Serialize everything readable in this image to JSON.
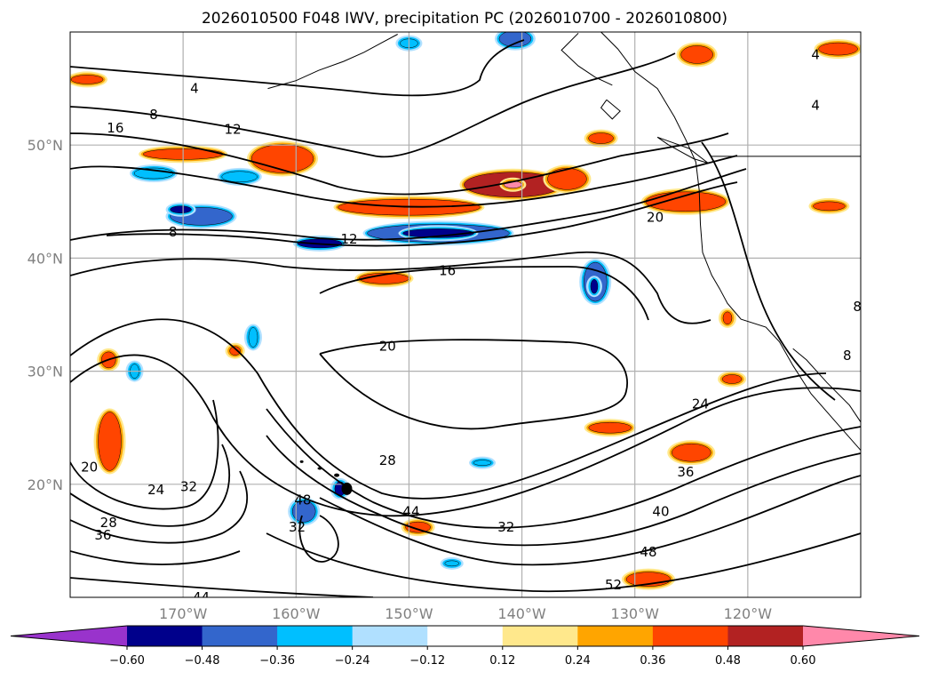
{
  "chart_data": {
    "type": "heatmap",
    "title": "2026010500 F048 IWV, precipitation PC (2026010700 - 2026010800)",
    "map_extent": {
      "lon_range": [
        -180,
        -110
      ],
      "lat_range": [
        10,
        60
      ]
    },
    "lon_ticks": [
      {
        "value": -170,
        "label": "170°W"
      },
      {
        "value": -160,
        "label": "160°W"
      },
      {
        "value": -150,
        "label": "150°W"
      },
      {
        "value": -140,
        "label": "140°W"
      },
      {
        "value": -130,
        "label": "130°W"
      },
      {
        "value": -120,
        "label": "120°W"
      }
    ],
    "lat_ticks": [
      {
        "value": 20,
        "label": "20°N"
      },
      {
        "value": 30,
        "label": "30°N"
      },
      {
        "value": 40,
        "label": "40°N"
      },
      {
        "value": 50,
        "label": "50°N"
      }
    ],
    "grid": true,
    "colorbar": {
      "orientation": "horizontal",
      "extend": "both",
      "levels": [
        -0.72,
        -0.6,
        -0.48,
        -0.36,
        -0.24,
        -0.12,
        0.12,
        0.24,
        0.36,
        0.48,
        0.6,
        0.72
      ],
      "tick_values": [
        -0.6,
        -0.48,
        -0.36,
        -0.24,
        -0.12,
        0.12,
        0.24,
        0.36,
        0.48,
        0.6
      ],
      "tick_labels": [
        "−0.60",
        "−0.48",
        "−0.36",
        "−0.24",
        "−0.12",
        "0.12",
        "0.24",
        "0.36",
        "0.48",
        "0.60"
      ],
      "colors": [
        "#9933cc",
        "#00008b",
        "#3366cc",
        "#00bfff",
        "#b0e0ff",
        "#ffffff",
        "#ffe88c",
        "#ffa500",
        "#ff4500",
        "#b22222",
        "#ff88aa"
      ]
    },
    "iwv_contour_labels": [
      {
        "text": "4",
        "lon": -169,
        "lat": 55
      },
      {
        "text": "4",
        "lon": -114,
        "lat": 58
      },
      {
        "text": "4",
        "lon": -114,
        "lat": 53.5
      },
      {
        "text": "8",
        "lon": -172.6,
        "lat": 52.7
      },
      {
        "text": "16",
        "lon": -176,
        "lat": 51.5
      },
      {
        "text": "12",
        "lon": -165.6,
        "lat": 51.4
      },
      {
        "text": "8",
        "lon": -170.9,
        "lat": 42.3
      },
      {
        "text": "12",
        "lon": -155.3,
        "lat": 41.7
      },
      {
        "text": "16",
        "lon": -146.6,
        "lat": 38.9
      },
      {
        "text": "20",
        "lon": -128.2,
        "lat": 43.6
      },
      {
        "text": "20",
        "lon": -151.9,
        "lat": 32.2
      },
      {
        "text": "24",
        "lon": -124.2,
        "lat": 27.1
      },
      {
        "text": "28",
        "lon": -151.9,
        "lat": 22.1
      },
      {
        "text": "20",
        "lon": -178.3,
        "lat": 21.5
      },
      {
        "text": "24",
        "lon": -172.4,
        "lat": 19.5
      },
      {
        "text": "32",
        "lon": -169.5,
        "lat": 19.8
      },
      {
        "text": "48",
        "lon": -159.4,
        "lat": 18.6
      },
      {
        "text": "44",
        "lon": -149.8,
        "lat": 17.6
      },
      {
        "text": "32",
        "lon": -159.9,
        "lat": 16.2
      },
      {
        "text": "36",
        "lon": -125.5,
        "lat": 21.1
      },
      {
        "text": "40",
        "lon": -127.7,
        "lat": 17.6
      },
      {
        "text": "48",
        "lon": -128.8,
        "lat": 14.0
      },
      {
        "text": "32",
        "lon": -141.4,
        "lat": 16.2
      },
      {
        "text": "28",
        "lon": -176.6,
        "lat": 16.6
      },
      {
        "text": "36",
        "lon": -177.1,
        "lat": 15.5
      },
      {
        "text": "52",
        "lon": -131.9,
        "lat": 11.1
      },
      {
        "text": "44",
        "lon": -168.4,
        "lat": 10.0
      },
      {
        "text": "8",
        "lon": -110.3,
        "lat": 35.7
      },
      {
        "text": "8",
        "lon": -111.2,
        "lat": 31.4
      }
    ],
    "precip_pc_features": [
      {
        "lon": -178.5,
        "lat": 55.8,
        "rx": 18,
        "ry": 5,
        "level": 0.36
      },
      {
        "lon": -170,
        "lat": 49.2,
        "rx": 45,
        "ry": 6,
        "level": 0.36
      },
      {
        "lon": -161.2,
        "lat": 48.8,
        "rx": 35,
        "ry": 16,
        "level": 0.36
      },
      {
        "lon": -150,
        "lat": 44.5,
        "rx": 80,
        "ry": 9,
        "level": 0.36
      },
      {
        "lon": -140.8,
        "lat": 46.5,
        "rx": 55,
        "ry": 14,
        "level": 0.48
      },
      {
        "lon": -140.8,
        "lat": 46.5,
        "rx": 10,
        "ry": 4,
        "level": 0.6
      },
      {
        "lon": -136,
        "lat": 47,
        "rx": 22,
        "ry": 12,
        "level": 0.36
      },
      {
        "lon": -125.5,
        "lat": 45,
        "rx": 45,
        "ry": 11,
        "level": 0.36
      },
      {
        "lon": -124.5,
        "lat": 58,
        "rx": 18,
        "ry": 10,
        "level": 0.36
      },
      {
        "lon": -112,
        "lat": 58.5,
        "rx": 22,
        "ry": 7,
        "level": 0.36
      },
      {
        "lon": -133,
        "lat": 50.6,
        "rx": 14,
        "ry": 6,
        "level": 0.36
      },
      {
        "lon": -176.5,
        "lat": 23.8,
        "rx": 13,
        "ry": 33,
        "level": 0.36
      },
      {
        "lon": -176.6,
        "lat": 31,
        "rx": 8,
        "ry": 9,
        "level": 0.36
      },
      {
        "lon": -152.2,
        "lat": 38.2,
        "rx": 28,
        "ry": 6,
        "level": 0.36
      },
      {
        "lon": -132.2,
        "lat": 25,
        "rx": 24,
        "ry": 6,
        "level": 0.36
      },
      {
        "lon": -125,
        "lat": 22.8,
        "rx": 22,
        "ry": 10,
        "level": 0.36
      },
      {
        "lon": -128.8,
        "lat": 11.6,
        "rx": 25,
        "ry": 8,
        "level": 0.36
      },
      {
        "lon": -149.2,
        "lat": 16.2,
        "rx": 14,
        "ry": 6,
        "level": 0.36
      },
      {
        "lon": -165.4,
        "lat": 31.8,
        "rx": 6,
        "ry": 5,
        "level": 0.36
      },
      {
        "lon": -121.4,
        "lat": 29.3,
        "rx": 11,
        "ry": 5,
        "level": 0.36
      },
      {
        "lon": -112.8,
        "lat": 44.6,
        "rx": 18,
        "ry": 5,
        "level": 0.36
      },
      {
        "lon": -121.8,
        "lat": 34.7,
        "rx": 5,
        "ry": 7,
        "level": 0.36
      },
      {
        "lon": -168.4,
        "lat": 43.7,
        "rx": 35,
        "ry": 10,
        "level": -0.48
      },
      {
        "lon": -170.2,
        "lat": 44.3,
        "rx": 12,
        "ry": 4,
        "level": -0.6
      },
      {
        "lon": -172.6,
        "lat": 47.5,
        "rx": 22,
        "ry": 6,
        "level": -0.36
      },
      {
        "lon": -165,
        "lat": 47.2,
        "rx": 20,
        "ry": 6,
        "level": -0.36
      },
      {
        "lon": -147.4,
        "lat": 42.2,
        "rx": 80,
        "ry": 10,
        "level": -0.48
      },
      {
        "lon": -147.4,
        "lat": 42.2,
        "rx": 40,
        "ry": 5,
        "level": -0.6
      },
      {
        "lon": -157.9,
        "lat": 41.3,
        "rx": 25,
        "ry": 5,
        "level": -0.6
      },
      {
        "lon": -150,
        "lat": 59,
        "rx": 10,
        "ry": 5,
        "level": -0.36
      },
      {
        "lon": -140.6,
        "lat": 59.4,
        "rx": 18,
        "ry": 9,
        "level": -0.48
      },
      {
        "lon": -133.5,
        "lat": 37.9,
        "rx": 13,
        "ry": 22,
        "level": -0.48
      },
      {
        "lon": -133.6,
        "lat": 37.5,
        "rx": 4,
        "ry": 8,
        "level": -0.6
      },
      {
        "lon": -163.8,
        "lat": 33,
        "rx": 5,
        "ry": 11,
        "level": -0.36
      },
      {
        "lon": -159.3,
        "lat": 17.6,
        "rx": 13,
        "ry": 12,
        "level": -0.48
      },
      {
        "lon": -156.1,
        "lat": 19.6,
        "rx": 6,
        "ry": 8,
        "level": -0.6
      },
      {
        "lon": -146.2,
        "lat": 13,
        "rx": 8,
        "ry": 3,
        "level": -0.36
      },
      {
        "lon": -143.5,
        "lat": 21.9,
        "rx": 10,
        "ry": 3,
        "level": -0.36
      },
      {
        "lon": -174.3,
        "lat": 30,
        "rx": 5,
        "ry": 8,
        "level": -0.36
      }
    ]
  }
}
